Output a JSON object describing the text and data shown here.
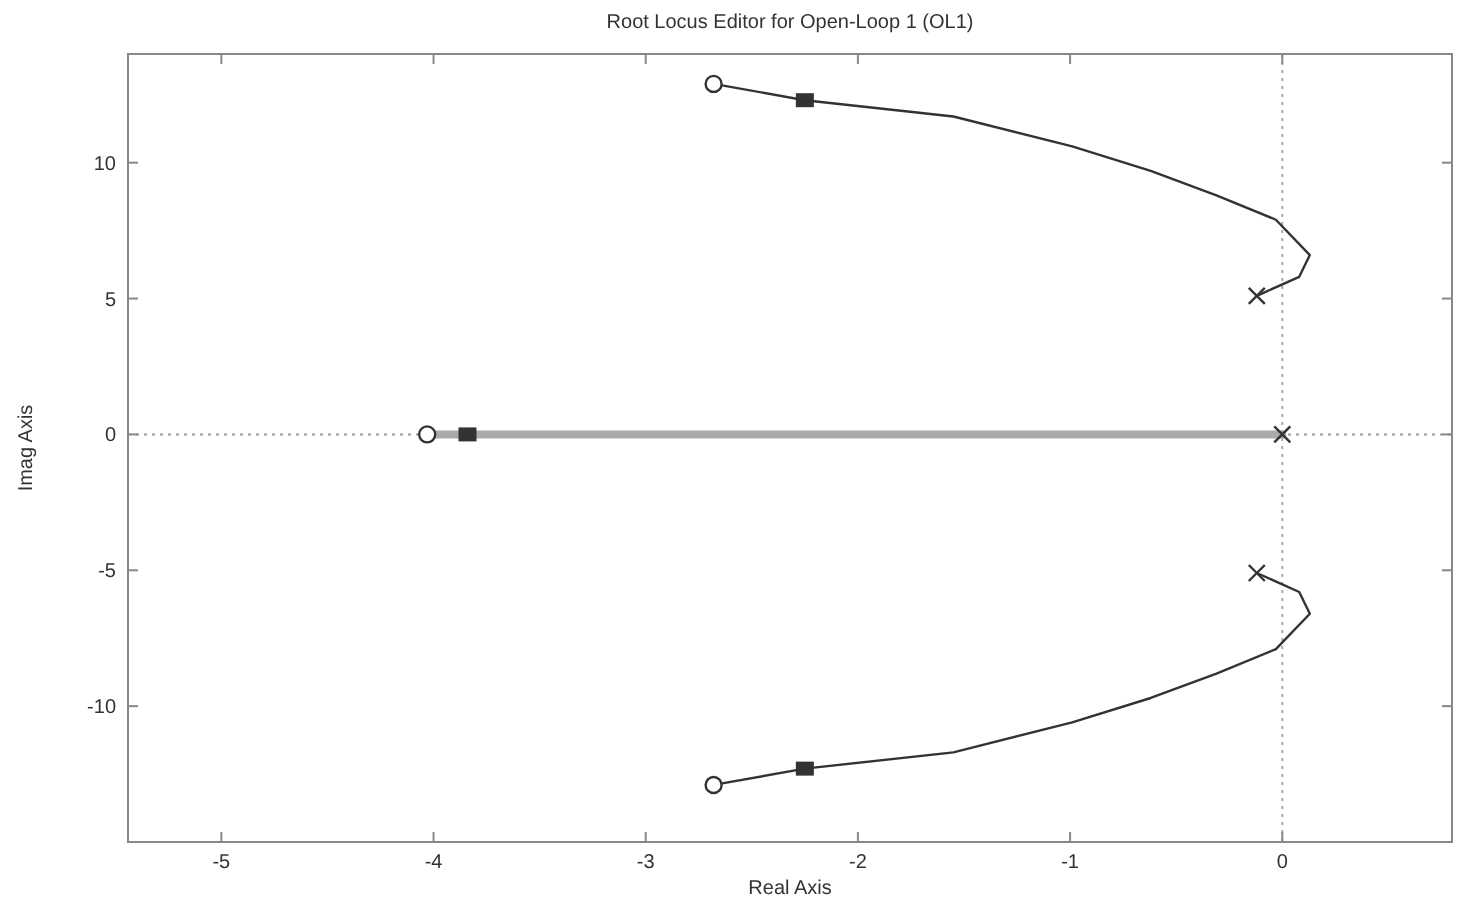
{
  "chart_data": {
    "type": "line",
    "title": "Root Locus Editor for Open-Loop 1 (OL1)",
    "xlabel": "Real Axis",
    "ylabel": "Imag Axis",
    "xlim": [
      -5.44,
      0.8
    ],
    "ylim": [
      -15,
      14
    ],
    "xticks": [
      -5,
      -4,
      -3,
      -2,
      -1,
      0
    ],
    "yticks": [
      -10,
      -5,
      0,
      5,
      10
    ],
    "grid": false,
    "ref_lines": [
      {
        "axis": "x",
        "value": 0,
        "color": "#aaaaaa",
        "line_style": "dotted"
      },
      {
        "axis": "y",
        "value": 0,
        "color": "#999999",
        "line_style": "dotted"
      }
    ],
    "series": [
      {
        "color": "#333333",
        "marker": "none",
        "line_style": "solid",
        "x": [
          -2.68,
          -2.25,
          -1.55,
          -0.99,
          -0.62,
          -0.31,
          -0.03,
          0.13,
          0.08,
          -0.12
        ],
        "values": [
          12.9,
          12.3,
          11.7,
          10.6,
          9.7,
          8.8,
          7.9,
          6.6,
          5.8,
          5.1
        ]
      },
      {
        "color": "#333333",
        "marker": "none",
        "line_style": "solid",
        "x": [
          -2.68,
          -2.25,
          -1.55,
          -0.99,
          -0.62,
          -0.31,
          -0.03,
          0.13,
          0.08,
          -0.12
        ],
        "values": [
          -12.9,
          -12.3,
          -11.7,
          -10.6,
          -9.7,
          -8.8,
          -7.9,
          -6.6,
          -5.8,
          -5.1
        ]
      },
      {
        "color": "#aaaaaa",
        "marker": "none",
        "line_style": "solid",
        "x": [
          -4.03,
          0
        ],
        "values": [
          0,
          0
        ]
      },
      {
        "type": "scatter",
        "color": "#333333",
        "marker": "cross",
        "x": [
          -0.12,
          -0.12,
          0
        ],
        "values": [
          5.1,
          -5.1,
          0
        ]
      },
      {
        "type": "scatter",
        "color": "#333333",
        "marker": "circle",
        "x": [
          -2.68,
          -2.68,
          -4.03
        ],
        "values": [
          12.9,
          -12.9,
          0
        ]
      },
      {
        "type": "scatter",
        "color": "#333333",
        "marker": "square",
        "x": [
          -2.25,
          -2.25,
          -3.84
        ],
        "values": [
          12.3,
          -12.3,
          0
        ]
      }
    ]
  }
}
